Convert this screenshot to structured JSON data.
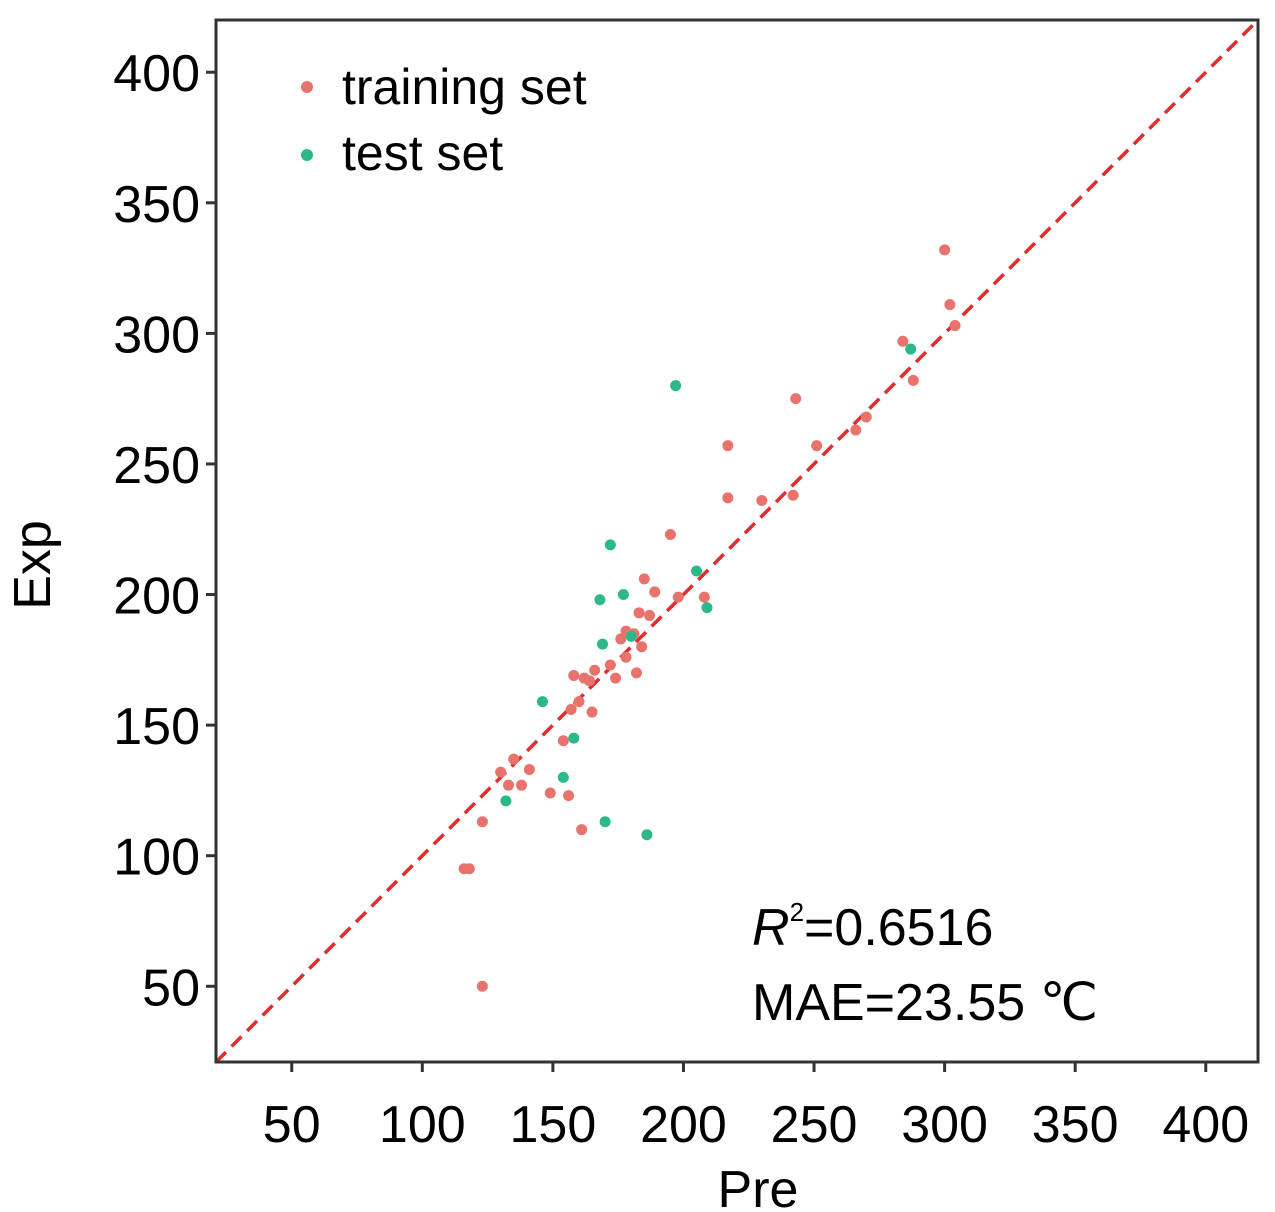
{
  "chart_data": {
    "type": "scatter",
    "title": "",
    "xlabel": "Pre",
    "ylabel": "Exp",
    "xlim": [
      21,
      420
    ],
    "ylim": [
      21,
      420
    ],
    "xticks": [
      50,
      100,
      150,
      200,
      250,
      300,
      350,
      400
    ],
    "yticks": [
      50,
      100,
      150,
      200,
      250,
      300,
      350,
      400
    ],
    "grid": false,
    "legend_position": "top-left",
    "reference_line": {
      "style": "dashed",
      "color": "#e32b2b",
      "slope": 1,
      "intercept": 0
    },
    "annotation": {
      "r2_symbol": "R",
      "r2_superscript": "2",
      "r2_value": "=0.6516",
      "mae_text": "MAE=23.55 ℃"
    },
    "series": [
      {
        "name": "training set",
        "color": "#e8736d",
        "points": [
          [
            300,
            332
          ],
          [
            302,
            311
          ],
          [
            304,
            303
          ],
          [
            284,
            297
          ],
          [
            288,
            282
          ],
          [
            243,
            275
          ],
          [
            270,
            268
          ],
          [
            266,
            263
          ],
          [
            251,
            257
          ],
          [
            217,
            257
          ],
          [
            242,
            238
          ],
          [
            230,
            236
          ],
          [
            217,
            237
          ],
          [
            195,
            223
          ],
          [
            185,
            206
          ],
          [
            189,
            201
          ],
          [
            198,
            199
          ],
          [
            208,
            199
          ],
          [
            183,
            193
          ],
          [
            187,
            192
          ],
          [
            178,
            186
          ],
          [
            181,
            185
          ],
          [
            176,
            183
          ],
          [
            184,
            180
          ],
          [
            172,
            173
          ],
          [
            178,
            176
          ],
          [
            166,
            171
          ],
          [
            162,
            168
          ],
          [
            158,
            169
          ],
          [
            174,
            168
          ],
          [
            164,
            167
          ],
          [
            182,
            170
          ],
          [
            160,
            159
          ],
          [
            157,
            156
          ],
          [
            165,
            155
          ],
          [
            154,
            144
          ],
          [
            141,
            133
          ],
          [
            135,
            137
          ],
          [
            130,
            132
          ],
          [
            138,
            127
          ],
          [
            133,
            127
          ],
          [
            149,
            124
          ],
          [
            156,
            123
          ],
          [
            123,
            113
          ],
          [
            161,
            110
          ],
          [
            116,
            95
          ],
          [
            118,
            95
          ],
          [
            123,
            50
          ]
        ]
      },
      {
        "name": "test set",
        "color": "#2bb88a",
        "points": [
          [
            287,
            294
          ],
          [
            197,
            280
          ],
          [
            172,
            219
          ],
          [
            205,
            209
          ],
          [
            177,
            200
          ],
          [
            168,
            198
          ],
          [
            209,
            195
          ],
          [
            180,
            184
          ],
          [
            169,
            181
          ],
          [
            146,
            159
          ],
          [
            158,
            145
          ],
          [
            154,
            130
          ],
          [
            132,
            121
          ],
          [
            170,
            113
          ],
          [
            186,
            108
          ]
        ]
      }
    ]
  }
}
